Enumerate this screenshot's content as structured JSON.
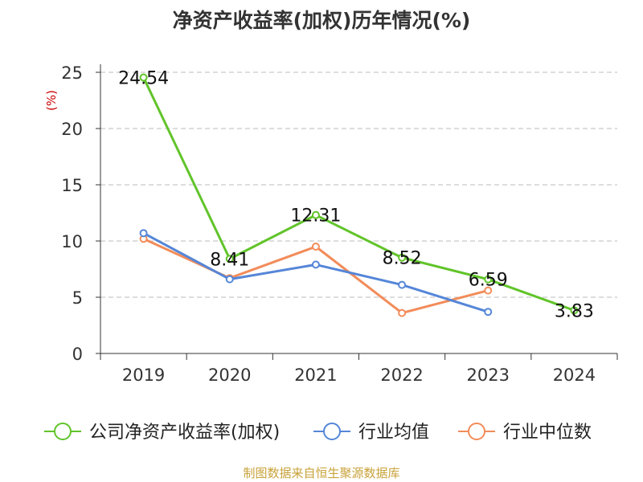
{
  "title": "净资产收益率(加权)历年情况(%)",
  "source_note": "制图数据来自恒生聚源数据库",
  "colors": {
    "company": "#61c42a",
    "industry_avg": "#5586d8",
    "industry_median": "#f28c5a",
    "axis": "#333333",
    "grid": "#bbbbbb",
    "unit": "#cc0000"
  },
  "chart_data": {
    "type": "line",
    "x": [
      "2019",
      "2020",
      "2021",
      "2022",
      "2023",
      "2024"
    ],
    "ylabel": "(%)",
    "ylim": [
      0,
      25
    ],
    "yticks": [
      0,
      5,
      10,
      15,
      20,
      25
    ],
    "grid": true,
    "legend_position": "bottom",
    "series": [
      {
        "name": "公司净资产收益率(加权)",
        "color": "#61c42a",
        "values": [
          24.54,
          8.41,
          12.31,
          8.52,
          6.59,
          3.83
        ],
        "show_labels": true
      },
      {
        "name": "行业均值",
        "color": "#5586d8",
        "values": [
          10.7,
          6.6,
          7.9,
          6.1,
          3.7,
          null
        ],
        "show_labels": false
      },
      {
        "name": "行业中位数",
        "color": "#f28c5a",
        "values": [
          10.2,
          6.7,
          9.5,
          3.6,
          5.6,
          null
        ],
        "show_labels": false
      }
    ]
  }
}
